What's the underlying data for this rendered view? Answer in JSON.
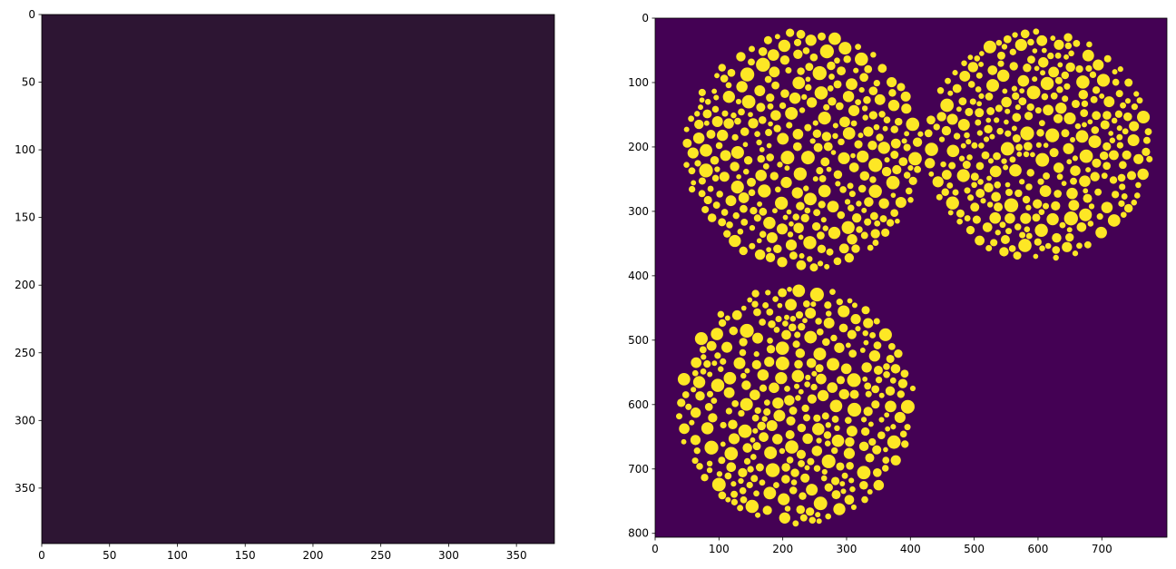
{
  "chart_data": [
    {
      "type": "image",
      "color": "#2d1533",
      "xlim": [
        0,
        378
      ],
      "ylim": [
        391,
        0
      ],
      "xticks": [
        0,
        50,
        100,
        150,
        200,
        250,
        300,
        350
      ],
      "yticks": [
        0,
        50,
        100,
        150,
        200,
        250,
        300,
        350
      ]
    },
    {
      "type": "image",
      "color": "#440154",
      "foreground": "#fde725",
      "xlim": [
        0,
        802
      ],
      "ylim": [
        806,
        0
      ],
      "xticks": [
        0,
        100,
        200,
        300,
        400,
        500,
        600,
        700
      ],
      "yticks": [
        0,
        100,
        200,
        300,
        400,
        500,
        600,
        700,
        800
      ]
    }
  ]
}
